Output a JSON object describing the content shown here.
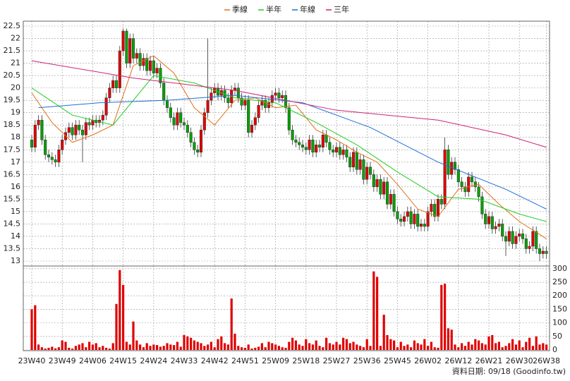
{
  "chart_data": [
    {
      "type": "candlestick",
      "legend": "top",
      "grid": true,
      "ylim": [
        12.8,
        22.7
      ],
      "yticks": [
        13,
        13.5,
        14,
        14.5,
        15,
        15.5,
        16,
        16.5,
        17,
        17.5,
        18,
        18.5,
        19,
        19.5,
        20,
        20.5,
        21,
        21.5,
        22,
        22.5
      ],
      "up_color": "#e00000",
      "down_color": "#00a000",
      "open": [
        17.9,
        17.6,
        18.5,
        18.7,
        17.9,
        17.3,
        17.2,
        17.1,
        17.0,
        17.5,
        17.9,
        18.2,
        18.4,
        18.1,
        18.5,
        18.3,
        18.1,
        18.6,
        18.5,
        18.7,
        18.6,
        18.7,
        18.9,
        19.6,
        20.0,
        20.3,
        20.0,
        21.5,
        22.3,
        21.0,
        22.0,
        21.2,
        21.4,
        20.9,
        21.2,
        20.7,
        21.1,
        20.6,
        20.8,
        20.2,
        19.5,
        19.2,
        18.8,
        18.5,
        19.0,
        18.6,
        18.5,
        18.2,
        17.8,
        17.5,
        17.4,
        18.3,
        19.0,
        19.5,
        19.8,
        20.0,
        19.7,
        19.9,
        19.6,
        19.4,
        19.9,
        20.0,
        19.6,
        19.3,
        19.5,
        18.2,
        18.5,
        18.8,
        19.3,
        19.5,
        19.2,
        19.4,
        19.7,
        19.8,
        19.6,
        19.7,
        19.2,
        18.3,
        17.9,
        17.8,
        17.7,
        17.6,
        17.5,
        17.9,
        17.4,
        17.7,
        17.6,
        18.1,
        17.8,
        17.5,
        17.4,
        17.6,
        17.3,
        17.5,
        17.2,
        16.8,
        17.4,
        16.7,
        17.1,
        16.3,
        16.8,
        16.5,
        16.0,
        16.3,
        15.7,
        16.2,
        15.3,
        15.7,
        15.0,
        14.7,
        14.6,
        14.8,
        15.0,
        14.5,
        14.9,
        14.4,
        14.5,
        14.4,
        15.0,
        15.3,
        14.8,
        15.5,
        15.3,
        17.5,
        16.5,
        17.0,
        16.7,
        16.2,
        16.0,
        15.8,
        16.4,
        16.2,
        16.0,
        15.6,
        14.9,
        14.5,
        14.8,
        14.3,
        14.4,
        14.5,
        14.0,
        13.8,
        14.2,
        13.7,
        14.0,
        14.1,
        13.9,
        13.5,
        13.6,
        14.2,
        13.5,
        13.3,
        13.4
      ],
      "high": [
        18.1,
        18.7,
        18.9,
        18.9,
        18.1,
        17.5,
        17.4,
        17.3,
        17.7,
        18.1,
        18.4,
        18.6,
        18.6,
        18.7,
        18.7,
        18.5,
        18.8,
        18.8,
        18.9,
        18.9,
        18.9,
        19.1,
        19.8,
        20.2,
        20.5,
        20.5,
        21.7,
        22.4,
        22.4,
        22.2,
        22.2,
        21.6,
        21.6,
        21.4,
        21.4,
        21.3,
        21.3,
        21.0,
        21.0,
        20.4,
        19.7,
        19.4,
        19.0,
        19.2,
        19.2,
        18.8,
        18.7,
        18.4,
        18.0,
        17.7,
        18.5,
        19.2,
        22.0,
        20.0,
        20.2,
        20.2,
        20.1,
        20.1,
        19.8,
        20.1,
        20.2,
        20.2,
        19.8,
        19.7,
        19.7,
        18.7,
        19.0,
        19.5,
        19.7,
        19.7,
        19.6,
        19.9,
        20.0,
        20.0,
        19.9,
        19.9,
        19.4,
        18.5,
        18.1,
        18.0,
        17.9,
        17.8,
        18.1,
        18.1,
        17.9,
        17.9,
        18.3,
        18.3,
        18.0,
        17.7,
        17.8,
        17.8,
        17.7,
        17.7,
        17.4,
        17.6,
        17.6,
        17.3,
        17.3,
        17.0,
        17.0,
        16.7,
        16.5,
        16.5,
        16.4,
        16.4,
        15.9,
        15.9,
        15.2,
        14.9,
        15.0,
        15.2,
        15.2,
        15.1,
        15.1,
        14.7,
        14.7,
        15.2,
        15.5,
        15.5,
        15.7,
        15.7,
        18.0,
        17.7,
        17.2,
        17.2,
        16.9,
        16.4,
        16.2,
        16.6,
        16.6,
        16.4,
        16.2,
        15.8,
        15.1,
        15.0,
        15.0,
        14.6,
        14.7,
        14.7,
        14.2,
        14.4,
        14.4,
        14.2,
        14.3,
        14.3,
        14.1,
        13.8,
        14.4,
        14.4,
        13.7,
        13.6,
        13.6
      ],
      "low": [
        17.4,
        17.4,
        18.3,
        17.7,
        17.1,
        17.0,
        16.9,
        16.8,
        16.8,
        17.3,
        17.7,
        18.0,
        17.9,
        17.9,
        18.1,
        17.0,
        17.9,
        18.3,
        18.3,
        18.4,
        18.4,
        18.5,
        18.7,
        19.4,
        19.8,
        19.8,
        19.8,
        21.3,
        20.8,
        20.8,
        21.0,
        21.0,
        20.7,
        20.7,
        20.5,
        20.5,
        20.4,
        20.4,
        20.0,
        19.3,
        19.0,
        18.6,
        18.3,
        18.3,
        18.4,
        18.3,
        18.0,
        17.6,
        17.3,
        17.2,
        17.2,
        18.1,
        18.8,
        19.3,
        19.6,
        19.5,
        19.5,
        19.4,
        19.2,
        19.2,
        19.7,
        19.4,
        19.1,
        19.1,
        18.0,
        18.0,
        18.3,
        18.6,
        19.1,
        19.0,
        19.0,
        19.2,
        19.5,
        19.4,
        19.4,
        19.0,
        18.1,
        17.7,
        17.6,
        17.5,
        17.4,
        17.3,
        17.3,
        17.2,
        17.2,
        17.4,
        17.4,
        17.6,
        17.3,
        17.2,
        17.2,
        17.1,
        17.1,
        17.0,
        16.6,
        16.6,
        16.5,
        16.5,
        16.1,
        16.1,
        16.3,
        15.8,
        15.8,
        15.5,
        15.5,
        15.1,
        15.1,
        14.8,
        14.5,
        14.4,
        14.4,
        14.6,
        14.3,
        14.3,
        14.2,
        14.2,
        14.2,
        14.2,
        14.8,
        14.6,
        14.6,
        15.1,
        15.1,
        16.3,
        16.3,
        16.5,
        16.0,
        15.8,
        15.6,
        15.6,
        16.0,
        15.8,
        15.4,
        14.7,
        14.3,
        14.3,
        14.1,
        14.1,
        14.2,
        13.8,
        13.2,
        13.6,
        13.5,
        13.5,
        13.8,
        13.7,
        13.3,
        13.3,
        13.4,
        13.3,
        13.0,
        13.1,
        13.1
      ],
      "close": [
        17.6,
        18.5,
        18.7,
        17.9,
        17.3,
        17.2,
        17.1,
        17.0,
        17.5,
        17.9,
        18.2,
        18.4,
        18.1,
        18.5,
        18.3,
        18.1,
        18.6,
        18.5,
        18.7,
        18.6,
        18.7,
        18.9,
        19.6,
        20.0,
        20.3,
        20.0,
        21.5,
        22.3,
        21.0,
        22.0,
        21.2,
        21.4,
        20.9,
        21.2,
        20.7,
        21.1,
        20.6,
        20.8,
        20.2,
        19.5,
        19.2,
        18.8,
        18.5,
        19.0,
        18.6,
        18.5,
        18.2,
        17.8,
        17.5,
        17.4,
        18.3,
        19.0,
        19.5,
        19.8,
        20.0,
        19.7,
        19.9,
        19.6,
        19.4,
        19.9,
        20.0,
        19.6,
        19.3,
        19.5,
        18.2,
        18.5,
        18.8,
        19.3,
        19.5,
        19.2,
        19.4,
        19.7,
        19.8,
        19.6,
        19.7,
        19.2,
        18.3,
        17.9,
        17.8,
        17.7,
        17.6,
        17.5,
        17.9,
        17.4,
        17.7,
        17.6,
        18.1,
        17.8,
        17.5,
        17.4,
        17.6,
        17.3,
        17.5,
        17.2,
        16.8,
        17.4,
        16.7,
        17.1,
        16.3,
        16.8,
        16.5,
        16.0,
        16.3,
        15.7,
        16.2,
        15.3,
        15.7,
        15.0,
        14.7,
        14.6,
        14.8,
        15.0,
        14.5,
        14.9,
        14.4,
        14.5,
        14.4,
        15.0,
        15.3,
        14.8,
        15.5,
        15.3,
        17.5,
        16.5,
        17.0,
        16.7,
        16.2,
        16.0,
        15.8,
        16.4,
        16.2,
        16.0,
        15.6,
        14.9,
        14.5,
        14.8,
        14.3,
        14.4,
        14.5,
        14.0,
        13.8,
        14.2,
        13.7,
        14.0,
        14.1,
        13.9,
        13.5,
        13.6,
        14.2,
        13.5,
        13.3,
        13.4,
        13.3
      ],
      "series": [
        {
          "name": "季線",
          "color": "#e0701a",
          "x": [
            0,
            6,
            12,
            18,
            24,
            30,
            36,
            42,
            48,
            54,
            60,
            66,
            72,
            78,
            84,
            90,
            96,
            102,
            108,
            114,
            120,
            126,
            132,
            138,
            144,
            152
          ],
          "values": [
            19.8,
            18.6,
            17.8,
            18.1,
            18.5,
            20.9,
            21.3,
            20.6,
            19.2,
            18.5,
            19.5,
            19.6,
            19.2,
            19.3,
            18.3,
            17.9,
            17.4,
            17.0,
            16.1,
            15.1,
            14.8,
            15.9,
            16.1,
            15.3,
            14.6,
            13.9
          ]
        },
        {
          "name": "半年",
          "color": "#22cc22",
          "x": [
            0,
            12,
            24,
            36,
            48,
            60,
            72,
            84,
            96,
            108,
            120,
            132,
            144,
            152
          ],
          "values": [
            20.0,
            18.9,
            18.5,
            20.5,
            20.2,
            19.6,
            19.4,
            18.6,
            17.7,
            16.6,
            15.6,
            15.5,
            14.9,
            14.6
          ]
        },
        {
          "name": "年線",
          "color": "#1f6fd6",
          "x": [
            2,
            20,
            40,
            60,
            80,
            100,
            120,
            140,
            152
          ],
          "values": [
            19.2,
            19.4,
            19.5,
            19.7,
            19.4,
            18.4,
            17.0,
            15.9,
            15.1
          ]
        },
        {
          "name": "三年",
          "color": "#cc2277",
          "x": [
            0,
            30,
            60,
            90,
            120,
            140,
            152
          ],
          "values": [
            21.1,
            20.4,
            19.9,
            19.1,
            18.7,
            18.1,
            17.6
          ]
        }
      ]
    },
    {
      "type": "bar",
      "color": "#e00000",
      "grid": true,
      "y2lim": [
        0,
        310
      ],
      "y2ticks": [
        0,
        50,
        100,
        150,
        200,
        250,
        300
      ],
      "categories": [
        "23W40",
        null,
        null,
        null,
        null,
        null,
        null,
        null,
        null,
        "23W49",
        null,
        null,
        null,
        null,
        null,
        null,
        null,
        null,
        "24W06",
        null,
        null,
        null,
        null,
        null,
        null,
        null,
        null,
        "24W15",
        null,
        null,
        null,
        null,
        null,
        null,
        null,
        null,
        "24W24",
        null,
        null,
        null,
        null,
        null,
        null,
        null,
        null,
        "24W33",
        null,
        null,
        null,
        null,
        null,
        null,
        null,
        null,
        "24W42",
        null,
        null,
        null,
        null,
        null,
        null,
        null,
        null,
        "24W51",
        null,
        null,
        null,
        null,
        null,
        null,
        null,
        null,
        "25W09",
        null,
        null,
        null,
        null,
        null,
        null,
        null,
        null,
        "25W18",
        null,
        null,
        null,
        null,
        null,
        null,
        null,
        null,
        "25W27",
        null,
        null,
        null,
        null,
        null,
        null,
        null,
        null,
        "25W36",
        null,
        null,
        null,
        null,
        null,
        null,
        null,
        null,
        "25W45",
        null,
        null,
        null,
        null,
        null,
        null,
        null,
        null,
        "26W02",
        null,
        null,
        null,
        null,
        null,
        null,
        null,
        null,
        "26W12",
        null,
        null,
        null,
        null,
        null,
        null,
        null,
        null,
        "26W21",
        null,
        null,
        null,
        null,
        null,
        null,
        null,
        null,
        "26W30",
        null,
        null,
        null,
        null,
        null,
        null,
        null,
        "26W38"
      ],
      "values": [
        150,
        165,
        20,
        10,
        5,
        8,
        12,
        6,
        10,
        35,
        30,
        8,
        5,
        15,
        20,
        25,
        10,
        30,
        20,
        25,
        10,
        15,
        8,
        5,
        25,
        170,
        295,
        240,
        30,
        20,
        105,
        35,
        20,
        10,
        25,
        15,
        20,
        18,
        12,
        15,
        25,
        20,
        18,
        30,
        12,
        55,
        50,
        45,
        35,
        30,
        25,
        15,
        20,
        30,
        10,
        40,
        50,
        25,
        20,
        190,
        60,
        15,
        10,
        8,
        20,
        5,
        8,
        12,
        25,
        10,
        30,
        25,
        20,
        15,
        10,
        8,
        30,
        45,
        35,
        20,
        15,
        40,
        25,
        20,
        35,
        15,
        10,
        45,
        25,
        20,
        30,
        20,
        45,
        40,
        25,
        30,
        20,
        15,
        10,
        40,
        15,
        290,
        270,
        15,
        130,
        55,
        40,
        35,
        10,
        30,
        15,
        20,
        10,
        35,
        25,
        20,
        40,
        15,
        30,
        10,
        8,
        240,
        245,
        80,
        75,
        20,
        10,
        25,
        15,
        30,
        20,
        40,
        35,
        25,
        20,
        50,
        55,
        25,
        30,
        10,
        15,
        25,
        40,
        20,
        35,
        10,
        30,
        45,
        15,
        50,
        20,
        25,
        20
      ],
      "footnote": "資料日期: 09/18  (Goodinfo.tw)"
    }
  ]
}
